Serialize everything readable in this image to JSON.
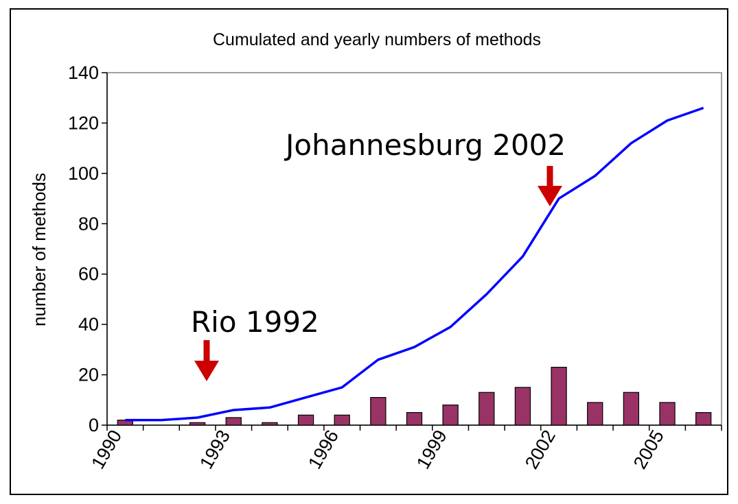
{
  "chart_data": {
    "type": "bar+line",
    "title": "Cumulated and yearly numbers of methods",
    "xlabel": "",
    "ylabel": "number of methods",
    "ylim": [
      0,
      140
    ],
    "yticks": [
      0,
      20,
      40,
      60,
      80,
      100,
      120,
      140
    ],
    "xticks": [
      "1990",
      "1993",
      "1996",
      "1999",
      "2002",
      "2005"
    ],
    "x": [
      1990,
      1991,
      1992,
      1993,
      1994,
      1995,
      1996,
      1997,
      1998,
      1999,
      2000,
      2001,
      2002,
      2003,
      2004,
      2005,
      2006
    ],
    "series": [
      {
        "type": "bar",
        "color": "#993366",
        "values": [
          2,
          0,
          1,
          3,
          1,
          4,
          4,
          11,
          5,
          8,
          13,
          15,
          23,
          9,
          13,
          9,
          5
        ]
      },
      {
        "type": "line",
        "color": "#0000FF",
        "values": [
          2,
          2,
          3,
          6,
          7,
          11,
          15,
          26,
          31,
          39,
          52,
          67,
          90,
          99,
          112,
          121,
          126
        ]
      }
    ],
    "annotations": [
      {
        "text": "Rio 1992",
        "year": 1992,
        "arrow_color": "#CC0000"
      },
      {
        "text": "Johannesburg 2002",
        "year": 2002,
        "arrow_color": "#CC0000"
      }
    ],
    "grid": false,
    "legend": "none"
  }
}
